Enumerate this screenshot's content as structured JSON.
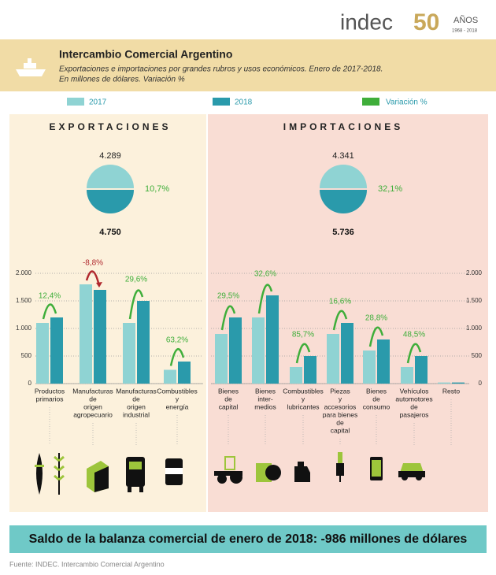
{
  "logo": {
    "name": "indec",
    "number": "50",
    "years_label": "AÑOS",
    "years": "1968 - 2018"
  },
  "header": {
    "title": "Intercambio Comercial Argentino",
    "subtitle_lines": [
      "Exportaciones e importaciones por grandes rubros y usos económicos. Enero de 2017-2018.",
      "En millones de dólares. Variación %"
    ]
  },
  "chart_data": [
    {
      "type": "bar",
      "title": "EXPORTACIONES",
      "axis_side": "left",
      "categories": [
        [
          "Productos",
          "primarios"
        ],
        [
          "Manufacturas",
          "de",
          "origen",
          "agropecuario"
        ],
        [
          "Manufacturas",
          "de",
          "origen",
          "industrial"
        ],
        [
          "Combustibles",
          "y",
          "energía"
        ]
      ],
      "series": [
        {
          "name": "2017",
          "color": "#8fd3d3",
          "values": [
            1100,
            1800,
            1100,
            250
          ]
        },
        {
          "name": "2018",
          "color": "#2a9aab",
          "values": [
            1200,
            1700,
            1500,
            400
          ]
        }
      ],
      "variation_name": "Variación %",
      "variation_color": "#3fae3a",
      "negative_color": "#b0282e",
      "variations": [
        12.4,
        -8.8,
        29.6,
        63.2
      ],
      "variation_labels": [
        "12,4%",
        "-8,8%",
        "29,6%",
        "63,2%"
      ],
      "totals": {
        "values": [
          4289,
          4750
        ],
        "value_labels": [
          "4.289",
          "4.750"
        ],
        "variation": 10.7,
        "variation_label": "10,7%"
      },
      "ylim": [
        0,
        2000
      ],
      "yticks": [
        0,
        500,
        {
          "value": 1000,
          "label": "1.000"
        },
        {
          "value": 1500,
          "label": "1.500"
        },
        {
          "value": 2000,
          "label": "2.000"
        }
      ],
      "grid": true
    },
    {
      "type": "bar",
      "title": "IMPORTACIONES",
      "axis_side": "right",
      "categories": [
        [
          "Bienes",
          "de",
          "capital"
        ],
        [
          "Bienes",
          "inter-",
          "medios"
        ],
        [
          "Combustibles",
          "y",
          "lubricantes"
        ],
        [
          "Piezas",
          "y",
          "accesorios",
          "para bienes",
          "de",
          "capital"
        ],
        [
          "Bienes",
          "de",
          "consumo"
        ],
        [
          "Vehículos",
          "automotores",
          "de",
          "pasajeros"
        ],
        [
          "Resto"
        ]
      ],
      "series": [
        {
          "name": "2017",
          "color": "#8fd3d3",
          "values": [
            900,
            1200,
            300,
            900,
            600,
            300,
            20
          ]
        },
        {
          "name": "2018",
          "color": "#2a9aab",
          "values": [
            1200,
            1600,
            500,
            1100,
            800,
            500,
            20
          ]
        }
      ],
      "variation_name": "Variación %",
      "variation_color": "#3fae3a",
      "variations": [
        29.5,
        32.6,
        85.7,
        16.6,
        28.8,
        48.5,
        null
      ],
      "variation_labels": [
        "29,5%",
        "32,6%",
        "85,7%",
        "16,6%",
        "28,8%",
        "48,5%",
        null
      ],
      "totals": {
        "values": [
          4341,
          5736
        ],
        "value_labels": [
          "4.341",
          "5.736"
        ],
        "variation": 32.1,
        "variation_label": "32,1%"
      },
      "ylim": [
        0,
        2000
      ],
      "yticks": [
        0,
        500,
        {
          "value": 1000,
          "label": "1.000"
        },
        {
          "value": 1500,
          "label": "1.500"
        },
        {
          "value": 2000,
          "label": "2.000"
        }
      ],
      "grid": true
    }
  ],
  "summary": "Saldo de la balanza comercial de enero de 2018: -986 millones de dólares",
  "source": "Fuente: INDEC. Intercambio Comercial Argentino"
}
